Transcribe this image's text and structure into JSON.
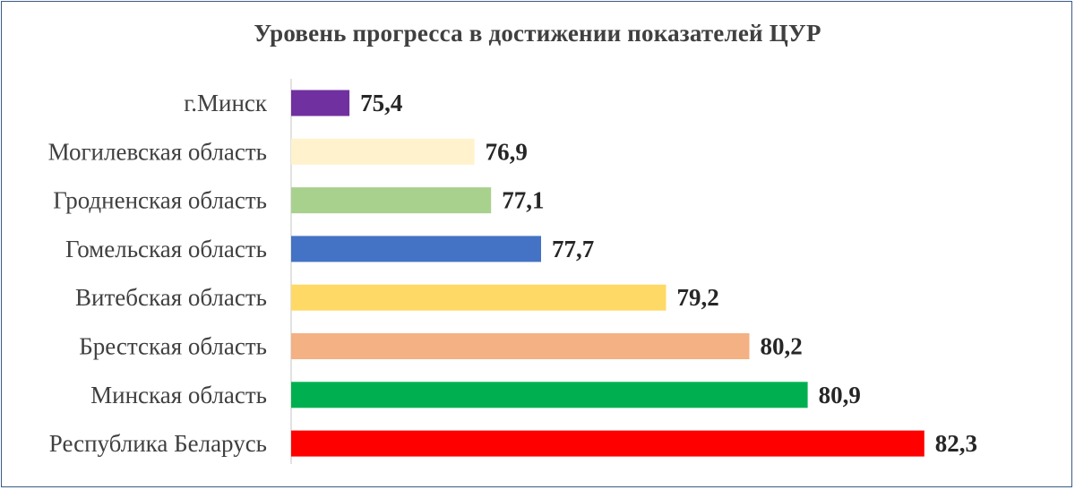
{
  "chart_data": {
    "type": "bar",
    "orientation": "horizontal",
    "title": "Уровень прогресса в достижении показателей ЦУР",
    "xlabel": "",
    "ylabel": "",
    "grid": false,
    "legend": "none",
    "xlim": [
      74.7,
      82.7
    ],
    "categories": [
      "г.Минск",
      "Могилевская область",
      "Гродненская область",
      "Гомельская область",
      "Витебская область",
      "Брестская область",
      "Минская область",
      "Республика Беларусь"
    ],
    "values": [
      75.4,
      76.9,
      77.1,
      77.7,
      79.2,
      80.2,
      80.9,
      82.3
    ],
    "value_labels": [
      "75,4",
      "76,9",
      "77,1",
      "77,7",
      "79,2",
      "80,2",
      "80,9",
      "82,3"
    ],
    "colors": [
      "#7030a0",
      "#fff2cc",
      "#a9d18e",
      "#4472c4",
      "#ffd966",
      "#f4b183",
      "#00b050",
      "#ff0000"
    ]
  }
}
